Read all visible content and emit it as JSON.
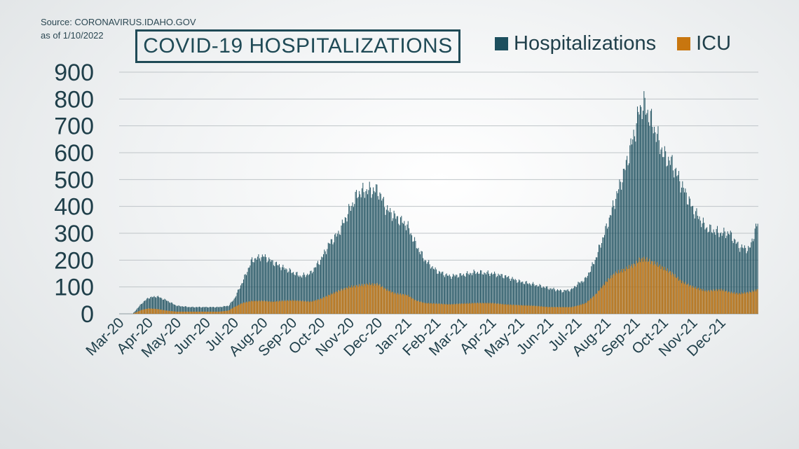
{
  "source": {
    "line1": "Source: CORONAVIRUS.IDAHO.GOV",
    "line2": "as of 1/10/2022"
  },
  "title": "COVID-19 HOSPITALIZATIONS",
  "colors": {
    "hospitalizations": "#1d4f5e",
    "icu": "#c8760f",
    "axis_text": "#1f3f4a",
    "grid": "#bfc5c8"
  },
  "chart_data": {
    "type": "bar",
    "title": "COVID-19 HOSPITALIZATIONS",
    "xlabel": "",
    "ylabel": "",
    "ylim": [
      0,
      900
    ],
    "yticks": [
      0,
      100,
      200,
      300,
      400,
      500,
      600,
      700,
      800,
      900
    ],
    "grid": true,
    "legend_position": "top-right",
    "x_tick_labels": [
      "Mar-20",
      "Apr-20",
      "May-20",
      "Jun-20",
      "Jul-20",
      "Aug-20",
      "Sep-20",
      "Oct-20",
      "Nov-20",
      "Dec-20",
      "Jan-21",
      "Feb-21",
      "Mar-21",
      "Apr-21",
      "May-21",
      "Jun-21",
      "Jul-21",
      "Aug-21",
      "Sep-21",
      "Oct-21",
      "Nov-21",
      "Dec-21"
    ],
    "x": [
      "2020-03-15",
      "2020-03-25",
      "2020-04-01",
      "2020-04-10",
      "2020-04-20",
      "2020-05-01",
      "2020-05-15",
      "2020-06-01",
      "2020-06-15",
      "2020-06-25",
      "2020-07-01",
      "2020-07-10",
      "2020-07-20",
      "2020-08-01",
      "2020-08-10",
      "2020-08-20",
      "2020-09-01",
      "2020-09-10",
      "2020-09-20",
      "2020-10-01",
      "2020-10-10",
      "2020-10-20",
      "2020-11-01",
      "2020-11-10",
      "2020-11-20",
      "2020-12-01",
      "2020-12-10",
      "2020-12-20",
      "2021-01-01",
      "2021-01-10",
      "2021-01-20",
      "2021-02-01",
      "2021-02-15",
      "2021-03-01",
      "2021-03-15",
      "2021-04-01",
      "2021-04-15",
      "2021-05-01",
      "2021-05-15",
      "2021-06-01",
      "2021-06-15",
      "2021-06-25",
      "2021-07-01",
      "2021-07-10",
      "2021-07-20",
      "2021-08-01",
      "2021-08-10",
      "2021-08-20",
      "2021-09-01",
      "2021-09-05",
      "2021-09-10",
      "2021-09-20",
      "2021-10-01",
      "2021-10-10",
      "2021-10-20",
      "2021-11-01",
      "2021-11-15",
      "2021-12-01",
      "2021-12-10",
      "2021-12-20",
      "2021-12-31",
      "2022-01-09"
    ],
    "series": [
      {
        "name": "Hospitalizations",
        "values": [
          0,
          40,
          60,
          65,
          50,
          30,
          25,
          25,
          25,
          30,
          55,
          120,
          200,
          215,
          195,
          175,
          155,
          140,
          150,
          200,
          260,
          300,
          390,
          450,
          460,
          460,
          390,
          360,
          330,
          260,
          200,
          160,
          140,
          145,
          155,
          150,
          140,
          120,
          110,
          95,
          85,
          90,
          110,
          130,
          200,
          320,
          420,
          530,
          690,
          760,
          780,
          700,
          590,
          560,
          480,
          390,
          320,
          300,
          300,
          250,
          240,
          340
        ]
      },
      {
        "name": "ICU",
        "values": [
          0,
          15,
          20,
          18,
          12,
          8,
          8,
          8,
          8,
          12,
          25,
          40,
          48,
          48,
          45,
          48,
          50,
          48,
          45,
          55,
          70,
          85,
          100,
          105,
          110,
          110,
          90,
          75,
          70,
          50,
          40,
          38,
          35,
          38,
          40,
          40,
          35,
          32,
          30,
          25,
          25,
          25,
          30,
          40,
          70,
          120,
          150,
          165,
          185,
          200,
          205,
          190,
          170,
          150,
          120,
          100,
          85,
          90,
          80,
          75,
          80,
          90
        ]
      }
    ]
  }
}
